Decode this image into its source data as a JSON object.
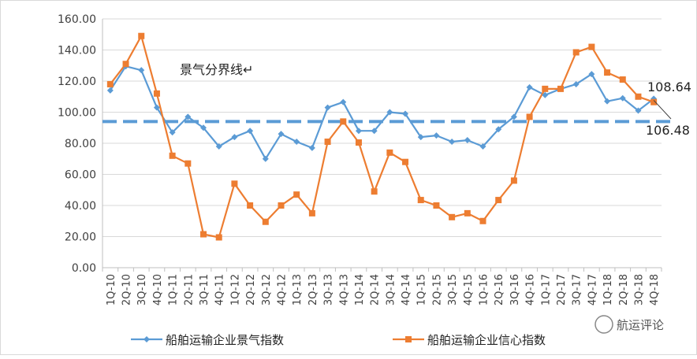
{
  "chart_data": {
    "type": "line",
    "categories": [
      "1Q-10",
      "2Q-10",
      "3Q-10",
      "4Q-10",
      "1Q-11",
      "2Q-11",
      "3Q-11",
      "4Q-11",
      "1Q-12",
      "2Q-12",
      "3Q-12",
      "4Q-12",
      "1Q-13",
      "2Q-13",
      "3Q-13",
      "4Q-13",
      "1Q-14",
      "2Q-14",
      "3Q-14",
      "4Q-14",
      "1Q-15",
      "2Q-15",
      "3Q-15",
      "4Q-15",
      "1Q-16",
      "2Q-16",
      "3Q-16",
      "4Q-16",
      "1Q-17",
      "2Q-17",
      "3Q-17",
      "4Q-17",
      "1Q-18",
      "2Q-18",
      "3Q-18",
      "4Q-18"
    ],
    "series": [
      {
        "name": "船舶运输企业景气指数",
        "color": "#5b9bd5",
        "marker": "diamond",
        "values": [
          114,
          129.5,
          127,
          103,
          87,
          97,
          90,
          78,
          84,
          88,
          70,
          86,
          81,
          77,
          103,
          106.5,
          88,
          88,
          100,
          99,
          84,
          85,
          81,
          82,
          78,
          89,
          97,
          116,
          111,
          115,
          118,
          124.5,
          107,
          109,
          101,
          108.64
        ]
      },
      {
        "name": "船舶运输企业信心指数",
        "color": "#ed7d31",
        "marker": "square",
        "values": [
          118,
          131,
          149,
          112,
          72,
          67,
          21.5,
          19.5,
          54,
          40,
          29.5,
          40,
          47,
          35,
          81,
          94,
          80.5,
          49,
          74,
          68,
          43.5,
          40,
          32.5,
          35,
          30,
          43.5,
          56,
          97,
          115,
          115,
          138.5,
          142,
          125.5,
          121,
          110,
          106.48
        ]
      }
    ],
    "yticks": [
      "0.00",
      "20.00",
      "40.00",
      "60.00",
      "80.00",
      "100.00",
      "120.00",
      "140.00",
      "160.00"
    ],
    "ylim": [
      0,
      160
    ],
    "threshold": {
      "value": 94,
      "label": "景气分界线↵",
      "color": "#5b9bd5"
    },
    "end_labels": [
      "108.64",
      "106.48"
    ],
    "grid": true,
    "legend_position": "bottom"
  },
  "watermark": {
    "text": "航运评论"
  }
}
